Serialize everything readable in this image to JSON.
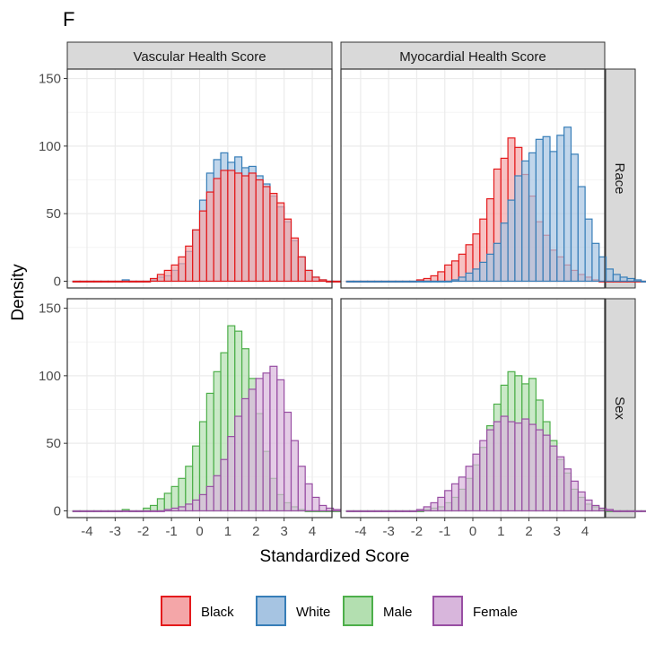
{
  "panel_tag": "F",
  "chart_data": {
    "type": "histogram",
    "xlabel": "Standardized Score",
    "ylabel": "Density",
    "columns": [
      "Vascular Health Score",
      "Myocardial Health Score"
    ],
    "rows": [
      "Race",
      "Sex"
    ],
    "xlim": [
      -4.7,
      4.7
    ],
    "ylim": [
      -5,
      157
    ],
    "x_ticks": [
      -4,
      -3,
      -2,
      -1,
      0,
      1,
      2,
      3,
      4
    ],
    "y_ticks": [
      0,
      50,
      100,
      150
    ],
    "grid": true,
    "bin_width": 0.25,
    "x_start": -4.5,
    "legend": {
      "position": "bottom",
      "entries": [
        {
          "label": "Black",
          "fill": "#F4A6A8",
          "stroke": "#E41A1C"
        },
        {
          "label": "White",
          "fill": "#A6C4E2",
          "stroke": "#377EB8"
        },
        {
          "label": "Male",
          "fill": "#B3DFB0",
          "stroke": "#4DAF4A"
        },
        {
          "label": "Female",
          "fill": "#D8B6DC",
          "stroke": "#984EA3"
        }
      ]
    },
    "panels": [
      {
        "row": "Race",
        "column": "Vascular Health Score",
        "series": [
          {
            "name": "White",
            "values": [
              0,
              0,
              0,
              0,
              0,
              0,
              0,
              1,
              0,
              0,
              0,
              1,
              3,
              4,
              8,
              13,
              22,
              38,
              60,
              80,
              90,
              95,
              88,
              92,
              84,
              85,
              78,
              72,
              63,
              55,
              44,
              30,
              18,
              8,
              3,
              1,
              0,
              0,
              0,
              0,
              0,
              0,
              0,
              0,
              0,
              0,
              0,
              0
            ]
          },
          {
            "name": "Black",
            "values": [
              0,
              0,
              0,
              0,
              0,
              0,
              0,
              0,
              0,
              0,
              0,
              2,
              5,
              8,
              12,
              18,
              26,
              38,
              52,
              66,
              76,
              82,
              82,
              80,
              78,
              80,
              75,
              70,
              65,
              58,
              46,
              32,
              18,
              8,
              3,
              1,
              0,
              0,
              0,
              0,
              0,
              0,
              0,
              0,
              0,
              0,
              0,
              0
            ]
          }
        ]
      },
      {
        "row": "Race",
        "column": "Myocardial Health Score",
        "series": [
          {
            "name": "Black",
            "values": [
              0,
              0,
              0,
              0,
              0,
              0,
              0,
              0,
              0,
              0,
              1,
              2,
              4,
              7,
              12,
              15,
              20,
              27,
              35,
              46,
              61,
              83,
              91,
              106,
              99,
              79,
              63,
              44,
              34,
              23,
              18,
              12,
              8,
              5,
              3,
              1,
              0,
              0,
              0,
              0,
              0,
              0,
              0,
              0,
              0,
              0,
              0,
              0
            ]
          },
          {
            "name": "White",
            "values": [
              0,
              0,
              0,
              0,
              0,
              0,
              0,
              0,
              0,
              0,
              0,
              0,
              0,
              0,
              0,
              1,
              3,
              6,
              9,
              14,
              20,
              28,
              43,
              60,
              78,
              89,
              95,
              105,
              107,
              96,
              108,
              114,
              94,
              70,
              46,
              28,
              18,
              9,
              5,
              3,
              2,
              1,
              0,
              0,
              0,
              0,
              0,
              0
            ]
          }
        ]
      },
      {
        "row": "Sex",
        "column": "Vascular Health Score",
        "series": [
          {
            "name": "Male",
            "values": [
              0,
              0,
              0,
              0,
              0,
              0,
              0,
              1,
              0,
              0,
              2,
              4,
              9,
              13,
              18,
              24,
              33,
              48,
              66,
              87,
              103,
              117,
              137,
              133,
              120,
              98,
              72,
              44,
              24,
              12,
              6,
              3,
              1,
              0,
              0,
              0,
              0,
              0,
              0,
              0,
              0,
              0,
              0,
              0,
              0,
              0,
              0,
              0
            ]
          },
          {
            "name": "Female",
            "values": [
              0,
              0,
              0,
              0,
              0,
              0,
              0,
              0,
              0,
              0,
              0,
              0,
              0,
              1,
              2,
              3,
              5,
              8,
              12,
              18,
              26,
              38,
              55,
              70,
              83,
              90,
              98,
              102,
              107,
              97,
              73,
              52,
              33,
              20,
              10,
              4,
              2,
              1,
              0,
              0,
              0,
              0,
              0,
              0,
              0,
              0,
              0,
              0,
              0,
              0
            ]
          }
        ]
      },
      {
        "row": "Sex",
        "column": "Myocardial Health Score",
        "series": [
          {
            "name": "Male",
            "values": [
              0,
              0,
              0,
              0,
              0,
              0,
              0,
              0,
              0,
              0,
              0,
              1,
              2,
              3,
              6,
              10,
              16,
              24,
              34,
              47,
              63,
              79,
              93,
              103,
              100,
              94,
              98,
              82,
              66,
              52,
              38,
              28,
              16,
              10,
              5,
              3,
              1,
              0,
              0,
              0,
              0,
              0,
              0,
              0,
              0,
              0,
              0,
              0
            ]
          },
          {
            "name": "Female",
            "values": [
              0,
              0,
              0,
              0,
              0,
              0,
              0,
              0,
              0,
              0,
              1,
              3,
              6,
              10,
              15,
              20,
              25,
              33,
              42,
              52,
              60,
              66,
              70,
              66,
              65,
              68,
              64,
              60,
              56,
              48,
              40,
              31,
              22,
              14,
              8,
              4,
              2,
              1,
              0,
              0,
              0,
              0,
              0,
              0,
              0,
              0,
              0,
              0,
              0,
              0
            ]
          }
        ]
      }
    ]
  }
}
